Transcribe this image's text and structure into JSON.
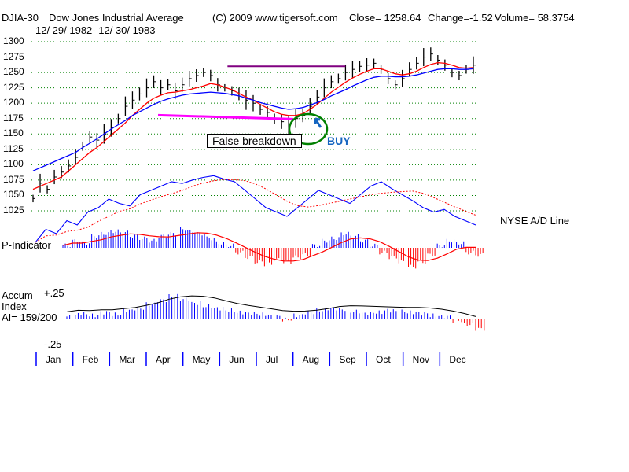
{
  "header": {
    "ticker": "DJIA-30",
    "name": "Dow Jones Industrial Average",
    "copyright": "(C) 2009 www.tigersoft.com",
    "close": "Close=  1258.64",
    "change": "Change=-1.52",
    "volume": "Volume= 58.3754",
    "range": "12/ 29/ 1982- 12/ 30/ 1983"
  },
  "labels": {
    "adline": "NYSE A/D Line",
    "pindicator": "P-Indicator",
    "accum1": "Accum",
    "accum2": "Index",
    "ai": "AI= 159/200",
    "acc_top": "+.25",
    "acc_bot": "-.25",
    "false_breakdown": "False breakdown",
    "buy": "BUY"
  },
  "colors": {
    "price": "#000000",
    "ma_red": "#ff0000",
    "ma_blue": "#0000ff",
    "grid": "#008000",
    "ad_line": "#0000ff",
    "p_pos": "#0000ff",
    "p_neg": "#ff0000",
    "resistance": "#800080",
    "support": "#ff00ff",
    "circle": "#008000",
    "buy": "#1565c0"
  },
  "chart_data": {
    "type": "line",
    "title": "DJIA-30 Dow Jones Industrial Average 12/29/1982-12/30/1983",
    "y_ticks": [
      1300,
      1275,
      1250,
      1225,
      1200,
      1175,
      1150,
      1125,
      1100,
      1075,
      1050,
      1025
    ],
    "ylim": [
      1010,
      1305
    ],
    "months": [
      "Jan",
      "Feb",
      "Mar",
      "Apr",
      "May",
      "Jun",
      "Jul",
      "Aug",
      "Sep",
      "Oct",
      "Nov",
      "Dec"
    ],
    "price_close": [
      1045,
      1070,
      1060,
      1080,
      1088,
      1098,
      1112,
      1130,
      1145,
      1140,
      1150,
      1160,
      1175,
      1195,
      1205,
      1215,
      1225,
      1235,
      1225,
      1230,
      1220,
      1230,
      1240,
      1245,
      1250,
      1245,
      1230,
      1225,
      1220,
      1215,
      1205,
      1200,
      1190,
      1185,
      1175,
      1170,
      1165,
      1175,
      1180,
      1195,
      1210,
      1225,
      1235,
      1240,
      1250,
      1255,
      1260,
      1262,
      1265,
      1255,
      1240,
      1230,
      1240,
      1255,
      1265,
      1275,
      1280,
      1270,
      1262,
      1250,
      1245,
      1255,
      1262
    ],
    "ma_red": [
      1060,
      1065,
      1070,
      1075,
      1080,
      1090,
      1100,
      1110,
      1120,
      1128,
      1138,
      1148,
      1158,
      1168,
      1180,
      1190,
      1200,
      1208,
      1213,
      1217,
      1218,
      1220,
      1222,
      1225,
      1228,
      1232,
      1230,
      1226,
      1222,
      1216,
      1210,
      1205,
      1198,
      1192,
      1186,
      1182,
      1180,
      1180,
      1183,
      1190,
      1198,
      1208,
      1218,
      1226,
      1234,
      1241,
      1247,
      1252,
      1256,
      1256,
      1252,
      1248,
      1246,
      1248,
      1252,
      1258,
      1263,
      1266,
      1265,
      1262,
      1258,
      1257,
      1258
    ],
    "ma_blue": [
      1090,
      1095,
      1100,
      1105,
      1110,
      1115,
      1120,
      1128,
      1135,
      1142,
      1150,
      1158,
      1165,
      1172,
      1180,
      1186,
      1192,
      1198,
      1203,
      1207,
      1210,
      1213,
      1215,
      1216,
      1217,
      1218,
      1217,
      1216,
      1214,
      1212,
      1208,
      1205,
      1201,
      1198,
      1195,
      1192,
      1190,
      1191,
      1193,
      1197,
      1201,
      1206,
      1212,
      1217,
      1222,
      1228,
      1233,
      1238,
      1242,
      1244,
      1244,
      1243,
      1243,
      1244,
      1246,
      1249,
      1252,
      1255,
      1256,
      1256,
      1255,
      1255,
      1256
    ],
    "resistance": {
      "level": 1260,
      "from_month": "Jun",
      "to_month": "Sep"
    },
    "support": {
      "level": 1178,
      "from_month": "Apr",
      "to_month": "Aug"
    },
    "ad_line": [
      0.2,
      0.35,
      0.3,
      0.45,
      0.4,
      0.55,
      0.6,
      0.7,
      0.65,
      0.62,
      0.75,
      0.8,
      0.85,
      0.9,
      0.88,
      0.92,
      0.95,
      0.97,
      0.93,
      0.9,
      0.8,
      0.7,
      0.6,
      0.55,
      0.5,
      0.6,
      0.7,
      0.8,
      0.75,
      0.7,
      0.65,
      0.75,
      0.85,
      0.9,
      0.82,
      0.75,
      0.68,
      0.6,
      0.55,
      0.58,
      0.5,
      0.45,
      0.4
    ],
    "p_indicator": [
      0.1,
      0.3,
      0.2,
      0.5,
      0.6,
      0.7,
      0.65,
      0.5,
      0.4,
      0.3,
      0.5,
      0.6,
      0.8,
      0.7,
      0.6,
      0.4,
      0.2,
      0.1,
      -0.2,
      -0.4,
      -0.6,
      -0.7,
      -0.5,
      -0.6,
      -0.4,
      -0.3,
      0.1,
      0.3,
      0.4,
      0.6,
      0.5,
      0.3,
      0.1,
      -0.2,
      -0.4,
      -0.6,
      -0.8,
      -0.6,
      -0.3,
      0.1,
      0.3,
      0.2,
      -0.2,
      -0.3
    ],
    "accum_index": [
      0.02,
      0.05,
      0.03,
      0.06,
      0.04,
      0.08,
      0.1,
      0.14,
      0.18,
      0.22,
      0.19,
      0.15,
      0.12,
      0.1,
      0.08,
      0.06,
      0.05,
      0.04,
      0.02,
      -0.01,
      0.03,
      0.06,
      0.08,
      0.1,
      0.09,
      0.07,
      0.05,
      0.06,
      0.08,
      0.07,
      0.06,
      0.05,
      0.03,
      0.02,
      -0.02,
      -0.06,
      -0.1
    ]
  }
}
